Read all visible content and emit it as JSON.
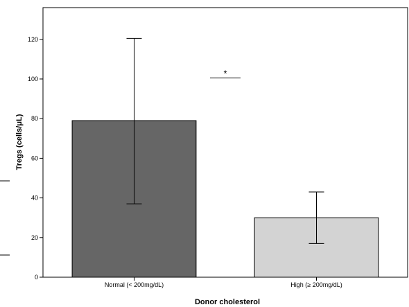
{
  "chart_data": {
    "type": "bar",
    "title": "",
    "xlabel": "Donor cholesterol",
    "ylabel": "Tregs (cells/μL)",
    "ylim": [
      0,
      136
    ],
    "yticks": [
      0,
      20,
      40,
      60,
      80,
      100,
      120
    ],
    "grid": false,
    "legend": "none",
    "categories": [
      "Normal (< 200mg/dL)",
      "High (≥ 200mg/dL)"
    ],
    "values": [
      79,
      30
    ],
    "error_low": [
      37,
      17
    ],
    "error_high": [
      120.5,
      43
    ],
    "bar_colors": [
      "#666666",
      "#d3d3d3"
    ],
    "significance": {
      "label": "*",
      "y": 100.5
    }
  }
}
